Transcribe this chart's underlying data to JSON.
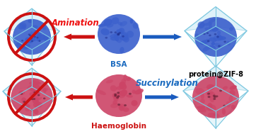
{
  "bg_color": "#ffffff",
  "top_row": {
    "protein_label": "BSA",
    "protein_label_color": "#1a6abf",
    "zif_label": "protein@ZIF-8",
    "zif_label_color": "#000000",
    "reaction_label": "Amination",
    "reaction_label_color": "#ee1111"
  },
  "bottom_row": {
    "protein_label": "Haemoglobin",
    "protein_label_color": "#cc1111",
    "reaction_label": "Succinylation",
    "reaction_label_color": "#1a6abf"
  },
  "arrow_blue": "#1a5bbf",
  "arrow_red": "#cc1111",
  "no_circle_color": "#cc1111",
  "zif_box_edge": "#7dc8e0",
  "zif_box_face": "#b8e4f2",
  "bsa_color": "#3a5fcc",
  "bsa_dark": "#1a2a88",
  "haemo_color": "#cc4466",
  "haemo_dark": "#441122",
  "font_size_label": 7.5,
  "font_size_reaction": 8.5,
  "font_size_zif": 7.0
}
